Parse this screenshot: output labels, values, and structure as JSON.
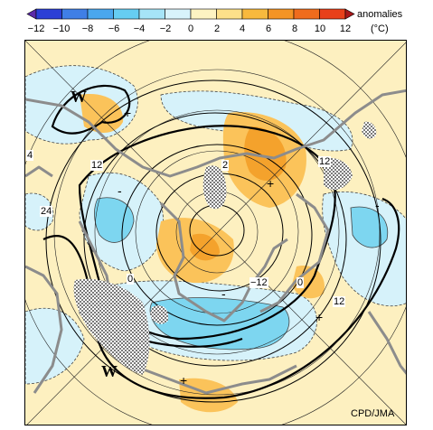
{
  "colorbar": {
    "title": "anomalies",
    "unit": "(°C)",
    "ticks": [
      "−12",
      "−10",
      "−8",
      "−6",
      "−4",
      "−2",
      "0",
      "2",
      "4",
      "6",
      "8",
      "10",
      "12"
    ],
    "colors": [
      "#2b3fd6",
      "#3f7fe6",
      "#4aa7ee",
      "#66cdf2",
      "#a6e4f7",
      "#d8f3fb",
      "#fdf3c2",
      "#fde08a",
      "#f8b93d",
      "#f49424",
      "#ef6c1d",
      "#e8401a"
    ]
  },
  "map": {
    "height_labels": [
      "24",
      "12",
      "4",
      "12",
      "0",
      "−12",
      "0",
      "12",
      "2",
      "12"
    ],
    "letters": [
      "W",
      "W"
    ],
    "minus_signs": [
      "-",
      "-",
      "-"
    ],
    "plus_signs": [
      "+",
      "+",
      "+",
      "+"
    ],
    "credit": "CPD/JMA"
  }
}
